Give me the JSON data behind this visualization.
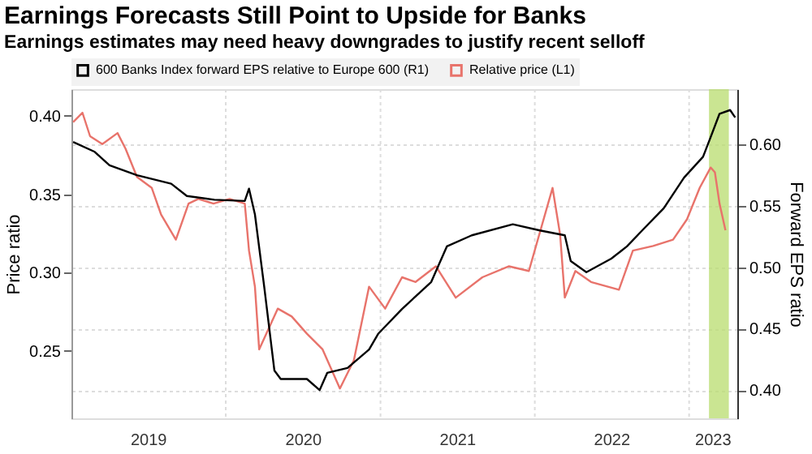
{
  "chart_data": {
    "type": "line",
    "title": "Earnings Forecasts Still Point to Upside for Banks",
    "subtitle": "Earnings estimates may need heavy downgrades to justify recent selloff",
    "ylabel": "Price ratio",
    "y2label": "Forward EPS ratio",
    "xlim": [
      "2019-01-01",
      "2023-04-25"
    ],
    "xticks": [
      {
        "value": "2019-07-01",
        "label": "2019"
      },
      {
        "value": "2020-01-01",
        "label": null
      },
      {
        "value": "2020-07-01",
        "label": "2020"
      },
      {
        "value": "2021-01-01",
        "label": null
      },
      {
        "value": "2021-07-01",
        "label": "2021"
      },
      {
        "value": "2022-01-01",
        "label": null
      },
      {
        "value": "2022-07-01",
        "label": "2022"
      },
      {
        "value": "2023-01-01",
        "label": null
      },
      {
        "value": "2023-02-25",
        "label": "2023"
      }
    ],
    "ylim": [
      0.207,
      0.417
    ],
    "yticks": [
      0.25,
      {
        "value": 0.3,
        "label": "0.30"
      },
      0.35,
      {
        "value": 0.4,
        "label": "0.40"
      }
    ],
    "y2lim": [
      0.377,
      0.645
    ],
    "y2ticks": [
      {
        "value": 0.4,
        "label": "0.40"
      },
      0.45,
      {
        "value": 0.5,
        "label": "0.50"
      },
      0.55,
      {
        "value": 0.6,
        "label": "0.60"
      }
    ],
    "grid": true,
    "legend": "top",
    "bands": [
      {
        "axis": "x",
        "from": "2023-02-17",
        "to": "2023-04-05",
        "label": null,
        "color": "#b8dc6e"
      }
    ],
    "series": [
      {
        "name": "600 Banks Index forward EPS relative to Europe 600 (R1)",
        "color": "#000000",
        "axis": "y2",
        "x": [
          "2019-01-05",
          "2019-02-25",
          "2019-04-01",
          "2019-06-05",
          "2019-08-25",
          "2019-10-01",
          "2019-12-05",
          "2020-02-15",
          "2020-02-25",
          "2020-03-10",
          "2020-04-01",
          "2020-04-25",
          "2020-05-10",
          "2020-07-11",
          "2020-08-10",
          "2020-08-28",
          "2020-10-15",
          "2020-12-05",
          "2020-12-27",
          "2021-02-21",
          "2021-05-01",
          "2021-06-07",
          "2021-08-05",
          "2021-11-10",
          "2022-01-13",
          "2022-03-13",
          "2022-03-27",
          "2022-05-03",
          "2022-07-01",
          "2022-08-07",
          "2022-09-12",
          "2022-11-02",
          "2022-12-20",
          "2023-02-03",
          "2023-02-21",
          "2023-03-14",
          "2023-04-08",
          "2023-04-20"
        ],
        "values": [
          0.602,
          0.594,
          0.583,
          0.575,
          0.568,
          0.558,
          0.555,
          0.554,
          0.564,
          0.543,
          0.484,
          0.416,
          0.409,
          0.409,
          0.4,
          0.414,
          0.418,
          0.433,
          0.446,
          0.466,
          0.488,
          0.517,
          0.526,
          0.535,
          0.53,
          0.526,
          0.505,
          0.496,
          0.507,
          0.517,
          0.53,
          0.548,
          0.573,
          0.59,
          0.606,
          0.625,
          0.628,
          0.622
        ]
      },
      {
        "name": "Relative price (L1)",
        "color": "#e8736b",
        "x": [
          "2019-01-05",
          "2019-01-27",
          "2019-02-14",
          "2019-03-15",
          "2019-04-20",
          "2019-05-09",
          "2019-06-05",
          "2019-07-10",
          "2019-08-01",
          "2019-09-05",
          "2019-10-05",
          "2019-10-28",
          "2019-12-03",
          "2020-01-10",
          "2020-02-15",
          "2020-02-25",
          "2020-03-10",
          "2020-03-20",
          "2020-05-03",
          "2020-06-05",
          "2020-07-11",
          "2020-08-17",
          "2020-09-27",
          "2020-10-30",
          "2020-12-05",
          "2021-01-12",
          "2021-02-21",
          "2021-03-25",
          "2021-05-12",
          "2021-06-28",
          "2021-08-30",
          "2021-11-01",
          "2021-12-18",
          "2022-02-12",
          "2022-03-02",
          "2022-03-13",
          "2022-04-07",
          "2022-05-14",
          "2022-07-19",
          "2022-08-21",
          "2022-10-08",
          "2022-11-24",
          "2022-12-27",
          "2023-01-26",
          "2023-02-21",
          "2023-03-03",
          "2023-03-14",
          "2023-03-28"
        ],
        "values": [
          0.396,
          0.402,
          0.387,
          0.382,
          0.389,
          0.379,
          0.361,
          0.354,
          0.337,
          0.321,
          0.344,
          0.347,
          0.344,
          0.347,
          0.344,
          0.314,
          0.291,
          0.251,
          0.277,
          0.272,
          0.261,
          0.251,
          0.226,
          0.244,
          0.291,
          0.277,
          0.297,
          0.294,
          0.304,
          0.284,
          0.297,
          0.304,
          0.301,
          0.354,
          0.324,
          0.284,
          0.301,
          0.294,
          0.289,
          0.314,
          0.317,
          0.321,
          0.334,
          0.354,
          0.367,
          0.364,
          0.344,
          0.327
        ]
      }
    ]
  }
}
